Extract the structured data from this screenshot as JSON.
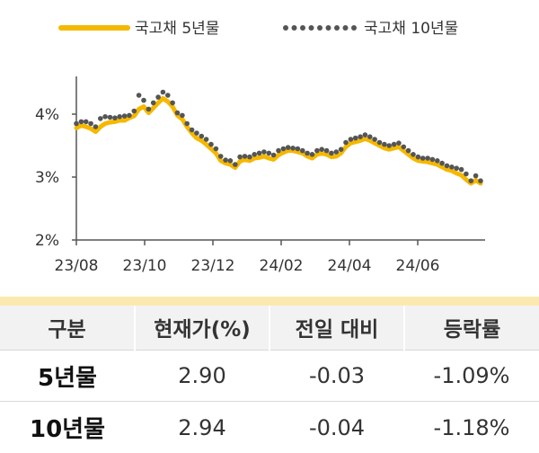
{
  "chart_data": {
    "type": "line",
    "legend": [
      {
        "label": "국고채 5년물",
        "style": "solid",
        "color": "#f5b800"
      },
      {
        "label": "국고채 10년물",
        "style": "dotted",
        "color": "#555555"
      }
    ],
    "legend_placement": "top",
    "x_ticks": [
      "23/08",
      "23/10",
      "23/12",
      "24/02",
      "24/04",
      "24/06"
    ],
    "y_ticks": [
      "2%",
      "3%",
      "4%"
    ],
    "ylim": [
      2.0,
      4.6
    ],
    "grid": false,
    "series": [
      {
        "name": "국고채 5년물",
        "values": [
          3.78,
          3.82,
          3.8,
          3.77,
          3.72,
          3.8,
          3.85,
          3.87,
          3.88,
          3.9,
          3.9,
          3.94,
          3.97,
          4.08,
          4.12,
          4.02,
          4.1,
          4.18,
          4.25,
          4.2,
          4.12,
          3.98,
          3.92,
          3.8,
          3.7,
          3.62,
          3.58,
          3.52,
          3.45,
          3.38,
          3.26,
          3.22,
          3.2,
          3.15,
          3.25,
          3.28,
          3.26,
          3.3,
          3.31,
          3.33,
          3.3,
          3.28,
          3.35,
          3.39,
          3.42,
          3.42,
          3.4,
          3.38,
          3.33,
          3.3,
          3.36,
          3.38,
          3.36,
          3.32,
          3.33,
          3.38,
          3.48,
          3.54,
          3.56,
          3.58,
          3.61,
          3.58,
          3.54,
          3.5,
          3.46,
          3.44,
          3.46,
          3.48,
          3.42,
          3.36,
          3.3,
          3.26,
          3.25,
          3.24,
          3.22,
          3.2,
          3.16,
          3.12,
          3.1,
          3.06,
          3.03,
          2.96,
          2.9,
          2.95,
          2.9
        ]
      },
      {
        "name": "국고채 10년물",
        "values": [
          3.85,
          3.88,
          3.88,
          3.85,
          3.8,
          3.93,
          3.96,
          3.95,
          3.94,
          3.96,
          3.97,
          3.98,
          4.05,
          4.3,
          4.22,
          4.08,
          4.18,
          4.27,
          4.35,
          4.3,
          4.18,
          4.02,
          3.98,
          3.85,
          3.75,
          3.7,
          3.65,
          3.6,
          3.52,
          3.45,
          3.33,
          3.27,
          3.26,
          3.2,
          3.32,
          3.33,
          3.32,
          3.36,
          3.38,
          3.4,
          3.38,
          3.35,
          3.42,
          3.45,
          3.47,
          3.46,
          3.45,
          3.42,
          3.38,
          3.36,
          3.42,
          3.44,
          3.42,
          3.38,
          3.4,
          3.44,
          3.55,
          3.6,
          3.62,
          3.64,
          3.67,
          3.64,
          3.6,
          3.55,
          3.52,
          3.5,
          3.52,
          3.54,
          3.48,
          3.42,
          3.36,
          3.32,
          3.3,
          3.3,
          3.28,
          3.26,
          3.22,
          3.18,
          3.16,
          3.14,
          3.12,
          3.05,
          2.94,
          3.02,
          2.94
        ]
      }
    ]
  },
  "table": {
    "headers": [
      "구분",
      "현재가(%)",
      "전일 대비",
      "등락률"
    ],
    "rows": [
      {
        "name": "5년물",
        "current": "2.90",
        "change": "-0.03",
        "rate": "-1.09%"
      },
      {
        "name": "10년물",
        "current": "2.94",
        "change": "-0.04",
        "rate": "-1.18%"
      }
    ]
  }
}
